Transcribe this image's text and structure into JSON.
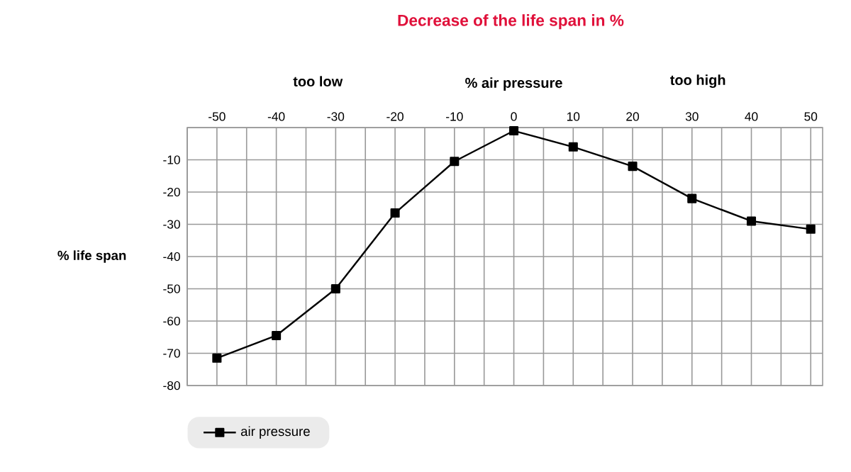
{
  "chart_data": {
    "type": "line",
    "title": "Decrease of the life span in %",
    "xlabel": "% air pressure",
    "ylabel": "% life span",
    "annotations": [
      "too low",
      "too high"
    ],
    "x": [
      -50,
      -40,
      -30,
      -20,
      -10,
      0,
      10,
      20,
      30,
      40,
      50
    ],
    "series": [
      {
        "name": "air pressure",
        "color": "#000000",
        "values": [
          -71.5,
          -64.5,
          -50,
          -26.5,
          -10.5,
          -1,
          -6,
          -12,
          -22,
          -29,
          -31.5
        ]
      }
    ],
    "xlim": [
      -55,
      52
    ],
    "ylim": [
      -80,
      0
    ],
    "xticks": [
      {
        "value": -55,
        "label": null
      },
      -50,
      {
        "value": -45,
        "label": null
      },
      -40,
      {
        "value": -35,
        "label": null
      },
      -30,
      {
        "value": -25,
        "label": null
      },
      -20,
      {
        "value": -15,
        "label": null
      },
      -10,
      {
        "value": -5,
        "label": null
      },
      0,
      {
        "value": 5,
        "label": null
      },
      10,
      {
        "value": 15,
        "label": null
      },
      20,
      {
        "value": 25,
        "label": null
      },
      30,
      {
        "value": 35,
        "label": null
      },
      40,
      {
        "value": 45,
        "label": null
      },
      50
    ],
    "yticks": [
      -80,
      -70,
      -60,
      -50,
      -40,
      -30,
      -20,
      -10,
      {
        "value": 0,
        "label": null
      }
    ],
    "grid": true,
    "legend": "bottom left",
    "marker": "square",
    "line_style": "solid"
  }
}
